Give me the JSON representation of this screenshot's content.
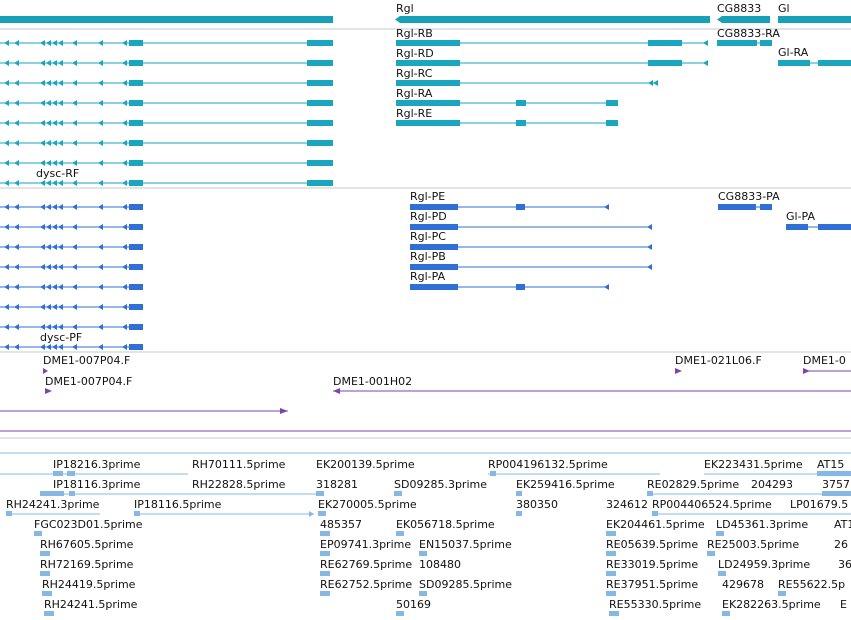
{
  "colors": {
    "gene": "#17a0b8",
    "transcript": "#1aa6be",
    "protein": "#2f6fd6",
    "clone": "#7b45ad",
    "est": "#86b8e4",
    "divider": "#c8c8c8"
  },
  "genes": {
    "rgl": "Rgl",
    "cg8833": "CG8833",
    "gi": "Gl"
  },
  "transcripts": {
    "dysc_rf": "dysc-RF",
    "rgl_rb": "Rgl-RB",
    "rgl_rd": "Rgl-RD",
    "rgl_rc": "Rgl-RC",
    "rgl_ra": "Rgl-RA",
    "rgl_re": "Rgl-RE",
    "cg8833_ra": "CG8833-RA",
    "gi_ra": "Gl-RA"
  },
  "proteins": {
    "dysc_pf": "dysc-PF",
    "rgl_pe": "Rgl-PE",
    "rgl_pd": "Rgl-PD",
    "rgl_pc": "Rgl-PC",
    "rgl_pb": "Rgl-PB",
    "rgl_pa": "Rgl-PA",
    "cg8833_pa": "CG8833-PA",
    "gi_pa": "Gl-PA"
  },
  "clones": {
    "c1": "DME1-007P04.F",
    "c2": "DME1-007P04.F",
    "c3": "DME1-021L06.F",
    "c4": "DME1-0",
    "c5": "DME1-001H02"
  },
  "ests": {
    "ip18216_3": "IP18216.3prime",
    "rh70111_5": "RH70111.5prime",
    "ek200139_5": "EK200139.5prime",
    "rp004196132_5": "RP004196132.5prime",
    "ek223431_5": "EK223431.5prime",
    "at15": "AT15",
    "ip18116_3": "IP18116.3prime",
    "rh22828_5": "RH22828.5prime",
    "n318281": "318281",
    "sd09285_3": "SD09285.3prime",
    "ek259416_5": "EK259416.5prime",
    "re02829_5": "RE02829.5prime",
    "n204293": "204293",
    "n3757": "3757",
    "rh24241_3": "RH24241.3prime",
    "ip18116_5": "IP18116.5prime",
    "ek270005_5": "EK270005.5prime",
    "n380350": "380350",
    "n324612": "324612",
    "rp004406524_5": "RP004406524.5prime",
    "lp01679_5": "LP01679.5",
    "fgc023d01_5": "FGC023D01.5prime",
    "n485357": "485357",
    "ek056718_5": "EK056718.5prime",
    "ek204461_5": "EK204461.5prime",
    "ld45361_3": "LD45361.3prime",
    "at1": "AT1",
    "rh67605_5": "RH67605.5prime",
    "ep09741_3": "EP09741.3prime",
    "en15037_5": "EN15037.5prime",
    "re05639_5": "RE05639.5prime",
    "re25003_5": "RE25003.5prime",
    "n26": "26",
    "rh72169_5": "RH72169.5prime",
    "re62769_5": "RE62769.5prime",
    "n108480": "108480",
    "re33019_5": "RE33019.5prime",
    "ld24959_3": "LD24959.3prime",
    "n36": "36",
    "rh24419_5": "RH24419.5prime",
    "re62752_5": "RE62752.5prime",
    "sd09285_5": "SD09285.5prime",
    "re37951_5": "RE37951.5prime",
    "n429678": "429678",
    "re55622_5": "RE55622.5p",
    "rh24241_5": "RH24241.5prime",
    "n50169": "50169",
    "re55330_5": "RE55330.5prime",
    "ek282263_5": "EK282263.5prime",
    "e_trunc": "E"
  }
}
